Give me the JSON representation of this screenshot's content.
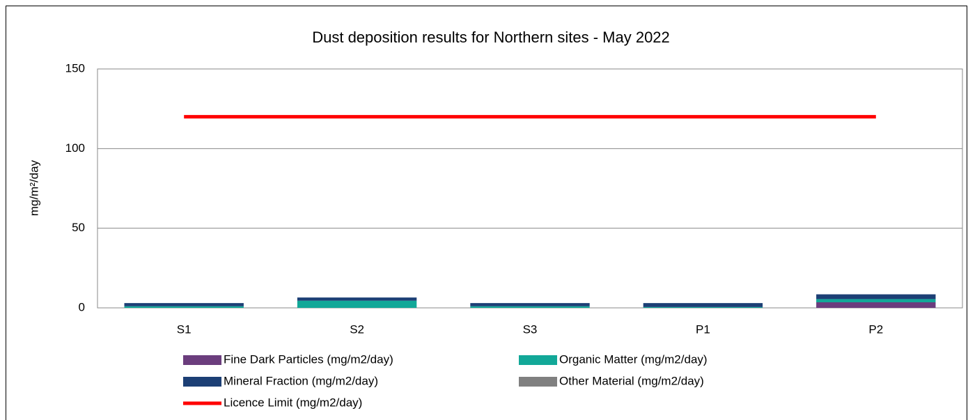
{
  "chart_data": {
    "type": "bar",
    "stacked": true,
    "title": "Dust deposition results for Northern sites - May 2022",
    "y_label": "mg/m²/day",
    "categories": [
      "S1",
      "S2",
      "S3",
      "P1",
      "P2"
    ],
    "series": [
      {
        "name": "Fine Dark Particles (mg/m2/day)",
        "color": "#6b3d7d",
        "values": [
          0,
          0,
          0,
          0,
          3.5
        ]
      },
      {
        "name": "Organic Matter (mg/m2/day)",
        "color": "#12a898",
        "values": [
          1,
          4.5,
          1,
          0.5,
          2
        ]
      },
      {
        "name": "Mineral Fraction (mg/m2/day)",
        "color": "#1c3f75",
        "values": [
          2,
          2,
          2,
          2.5,
          3
        ]
      },
      {
        "name": "Other Material (mg/m2/day)",
        "color": "#808080",
        "values": [
          0,
          0,
          0,
          0,
          0
        ]
      },
      {
        "name": "Licence Limit  (mg/m2/day)",
        "color": "#ff0000",
        "type": "line",
        "values": [
          120,
          120,
          120,
          120,
          120
        ]
      }
    ],
    "ylim": [
      0,
      150
    ],
    "yticks": [
      0,
      50,
      100,
      150
    ],
    "grid": true
  }
}
